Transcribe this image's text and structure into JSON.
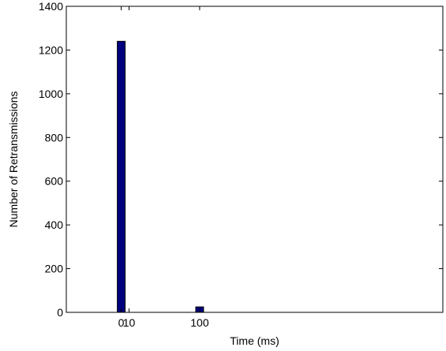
{
  "chart_data": {
    "type": "bar",
    "title": "",
    "xlabel": "Time (ms)",
    "ylabel": "Number of Retransmissions",
    "xlim": [
      -70,
      410
    ],
    "ylim": [
      0,
      1400
    ],
    "xticks": [
      0,
      10,
      100
    ],
    "yticks": [
      0,
      200,
      400,
      600,
      800,
      1000,
      1200,
      1400
    ],
    "bar_width": 10,
    "x": [
      0,
      100
    ],
    "values": [
      1240,
      25
    ],
    "grid": false,
    "legend": "none",
    "colors": {
      "bar_fill": "#00007f",
      "bar_edge": "#000000",
      "axis": "#000000"
    }
  }
}
